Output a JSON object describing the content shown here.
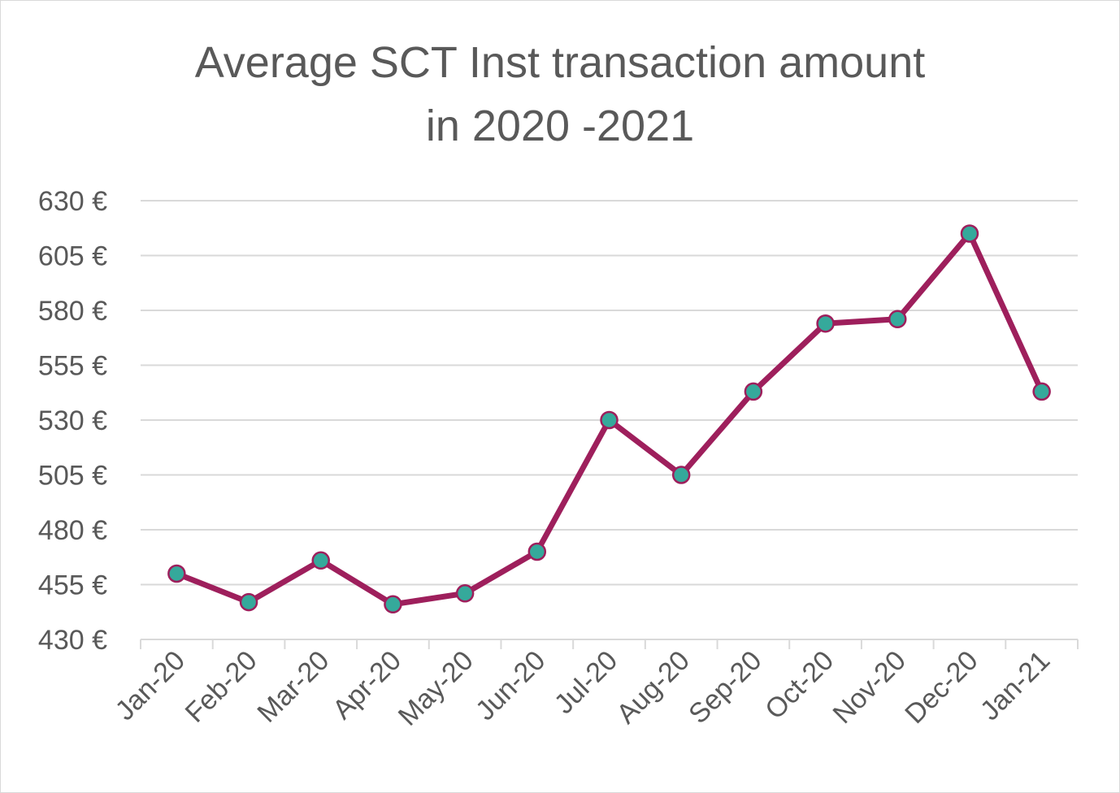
{
  "chart_data": {
    "type": "line",
    "title": [
      "Average SCT Inst transaction amount",
      "in 2020 -2021"
    ],
    "xlabel": "",
    "ylabel": "",
    "categories": [
      "Jan-20",
      "Feb-20",
      "Mar-20",
      "Apr-20",
      "May-20",
      "Jun-20",
      "Jul-20",
      "Aug-20",
      "Sep-20",
      "Oct-20",
      "Nov-20",
      "Dec-20",
      "Jan-21"
    ],
    "values": [
      460,
      447,
      466,
      446,
      451,
      470,
      530,
      505,
      543,
      574,
      576,
      615,
      543
    ],
    "ylim": [
      430,
      630
    ],
    "yticks": [
      430,
      455,
      480,
      505,
      530,
      555,
      580,
      605,
      630
    ],
    "ytick_suffix": " €",
    "grid": true,
    "legend": "none",
    "colors": {
      "line": "#9e1f5c",
      "marker_fill": "#35a99b",
      "grid": "#d9d9d9",
      "text": "#595959"
    }
  }
}
